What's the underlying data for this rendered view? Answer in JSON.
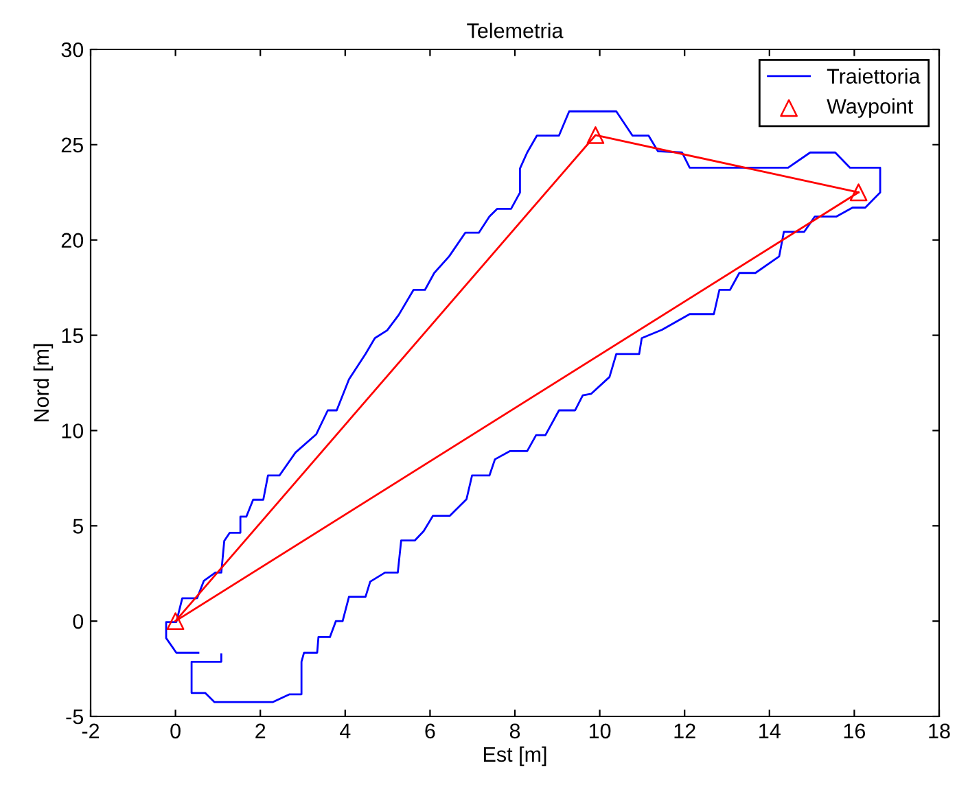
{
  "chart_data": {
    "type": "line",
    "title": "Telemetria",
    "xlabel": "Est [m]",
    "ylabel": "Nord [m]",
    "xlim": [
      -2,
      18
    ],
    "xticks": [
      -2,
      0,
      2,
      4,
      6,
      8,
      10,
      12,
      14,
      16,
      18
    ],
    "ylim": [
      -5,
      30
    ],
    "yticks": [
      -5,
      0,
      5,
      10,
      15,
      20,
      25,
      30
    ],
    "grid": false,
    "legend": "top right",
    "series": [
      {
        "name": "Traiettoria",
        "color": "#0000ff",
        "marker": "none",
        "line_style": "solid",
        "x": [
          0.54,
          0.02,
          -0.22,
          -0.22,
          0.02,
          0.16,
          0.51,
          0.67,
          0.94,
          1.08,
          1.15,
          1.28,
          1.53,
          1.53,
          1.67,
          1.83,
          2.07,
          2.18,
          2.45,
          2.83,
          3.32,
          3.59,
          3.8,
          4.09,
          4.48,
          4.7,
          4.99,
          5.26,
          5.61,
          5.88,
          6.1,
          6.45,
          6.83,
          7.15,
          7.4,
          7.58,
          7.91,
          8.12,
          8.12,
          8.29,
          8.52,
          9.04,
          9.28,
          10.39,
          10.77,
          11.15,
          11.37,
          11.94,
          12.12,
          14.44,
          14.96,
          15.55,
          15.9,
          16.61,
          16.61,
          16.26,
          15.96,
          15.58,
          15.07,
          14.82,
          14.34,
          14.23,
          13.67,
          13.29,
          13.07,
          12.82,
          12.69,
          12.12,
          11.47,
          10.99,
          10.93,
          10.39,
          10.23,
          9.8,
          9.6,
          9.42,
          9.04,
          8.72,
          8.5,
          8.29,
          7.88,
          7.53,
          7.4,
          6.99,
          6.86,
          6.47,
          6.07,
          5.85,
          5.64,
          5.32,
          5.24,
          4.94,
          4.59,
          4.48,
          4.09,
          3.94,
          3.78,
          3.64,
          3.37,
          3.34,
          3.03,
          2.97,
          2.97,
          2.69,
          2.29,
          0.92,
          0.7,
          0.38,
          0.38,
          1.08,
          1.08
        ],
        "values": [
          -1.66,
          -1.66,
          -0.89,
          -0.05,
          -0.05,
          1.2,
          1.2,
          2.12,
          2.55,
          2.55,
          4.21,
          4.64,
          4.64,
          5.48,
          5.48,
          6.37,
          6.37,
          7.64,
          7.64,
          8.85,
          9.81,
          11.06,
          11.06,
          12.69,
          14.02,
          14.85,
          15.26,
          16.06,
          17.38,
          17.38,
          18.27,
          19.14,
          20.38,
          20.38,
          21.23,
          21.63,
          21.63,
          22.49,
          23.75,
          24.59,
          25.48,
          25.48,
          26.75,
          26.75,
          25.48,
          25.48,
          24.66,
          24.59,
          23.79,
          23.79,
          24.59,
          24.59,
          23.79,
          23.79,
          22.49,
          21.7,
          21.7,
          21.23,
          21.23,
          20.43,
          20.43,
          19.14,
          18.27,
          18.27,
          17.38,
          17.38,
          16.11,
          16.11,
          15.29,
          14.85,
          14.02,
          14.02,
          12.81,
          11.93,
          11.85,
          11.06,
          11.06,
          9.76,
          9.76,
          8.92,
          8.92,
          8.49,
          7.64,
          7.64,
          6.4,
          5.53,
          5.53,
          4.72,
          4.23,
          4.23,
          2.55,
          2.55,
          2.07,
          1.28,
          1.28,
          0.0,
          0.0,
          -0.84,
          -0.84,
          -1.66,
          -1.66,
          -2.13,
          -3.84,
          -3.84,
          -4.25,
          -4.25,
          -3.77,
          -3.77,
          -2.13,
          -2.13,
          -1.75
        ]
      },
      {
        "color": "#ff0000",
        "marker": "none",
        "line_style": "solid",
        "x": [
          0,
          9.9,
          16.1
        ],
        "values": [
          0,
          25.5,
          22.5
        ]
      },
      {
        "color": "#ff0000",
        "marker": "none",
        "line_style": "solid",
        "x": [
          16.1,
          0
        ],
        "values": [
          22.5,
          0
        ]
      },
      {
        "name": "Waypoint",
        "type": "scatter",
        "color": "#ff0000",
        "marker": "triangle",
        "x": [
          0,
          9.9,
          16.1
        ],
        "values": [
          0,
          25.5,
          22.5
        ]
      }
    ]
  }
}
